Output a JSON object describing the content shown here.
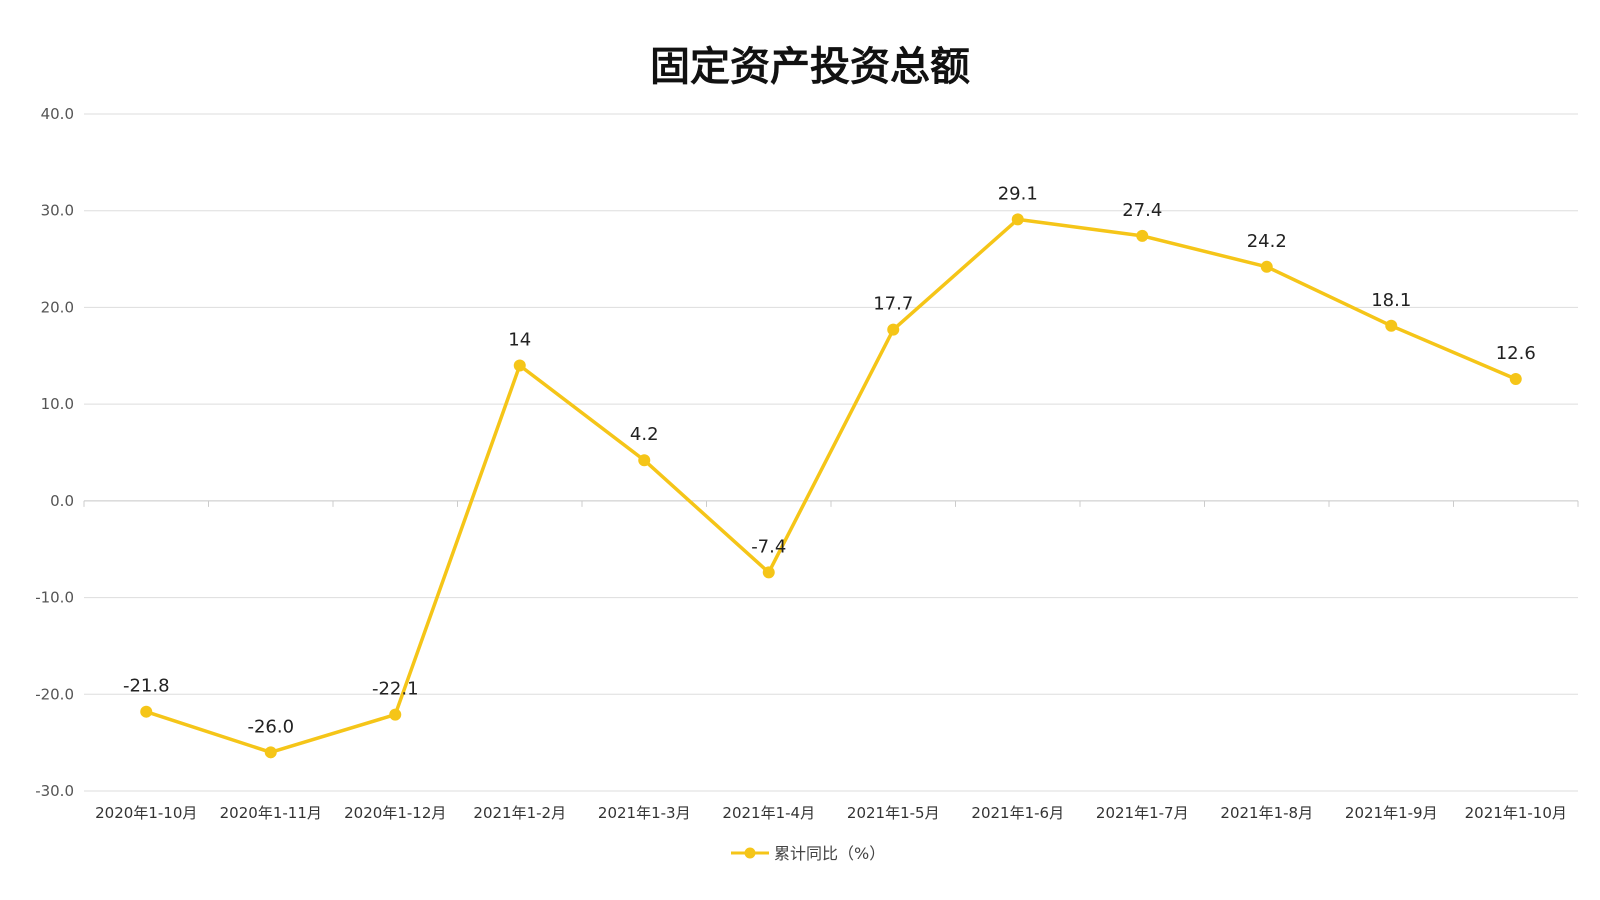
{
  "chart_data": {
    "type": "line",
    "title": "固定资产投资总额",
    "xlabel": "",
    "ylabel": "",
    "categories": [
      "2020年1-10月",
      "2020年1-11月",
      "2020年1-12月",
      "2021年1-2月",
      "2021年1-3月",
      "2021年1-4月",
      "2021年1-5月",
      "2021年1-6月",
      "2021年1-7月",
      "2021年1-8月",
      "2021年1-9月",
      "2021年1-10月"
    ],
    "series": [
      {
        "name": "累计同比（%）",
        "values": [
          -21.8,
          -26.0,
          -22.1,
          14,
          4.2,
          -7.4,
          17.7,
          29.1,
          27.4,
          24.2,
          18.1,
          12.6
        ],
        "labels": [
          "-21.8",
          "-26.0",
          "-22.1",
          "14",
          "4.2",
          "-7.4",
          "17.7",
          "29.1",
          "27.4",
          "24.2",
          "18.1",
          "12.6"
        ],
        "color": "#f5c518"
      }
    ],
    "ylim": [
      -30,
      40
    ],
    "yticks": [
      "-30.0",
      "-20.0",
      "-10.0",
      "0.0",
      "10.0",
      "20.0",
      "30.0",
      "40.0"
    ],
    "grid": true,
    "legend_position": "bottom-center"
  }
}
